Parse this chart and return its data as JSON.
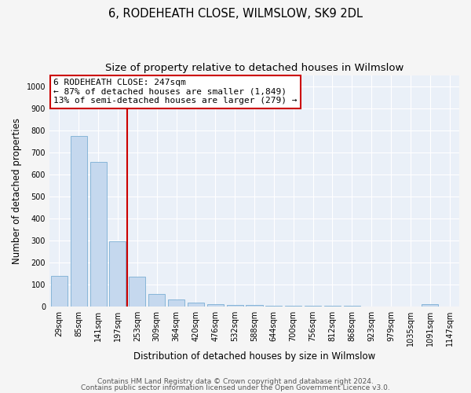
{
  "title": "6, RODEHEATH CLOSE, WILMSLOW, SK9 2DL",
  "subtitle": "Size of property relative to detached houses in Wilmslow",
  "xlabel": "Distribution of detached houses by size in Wilmslow",
  "ylabel": "Number of detached properties",
  "categories": [
    "29sqm",
    "85sqm",
    "141sqm",
    "197sqm",
    "253sqm",
    "309sqm",
    "364sqm",
    "420sqm",
    "476sqm",
    "532sqm",
    "588sqm",
    "644sqm",
    "700sqm",
    "756sqm",
    "812sqm",
    "868sqm",
    "923sqm",
    "979sqm",
    "1035sqm",
    "1091sqm",
    "1147sqm"
  ],
  "values": [
    140,
    775,
    655,
    295,
    135,
    57,
    33,
    18,
    10,
    8,
    5,
    4,
    3,
    3,
    2,
    2,
    0,
    0,
    0,
    10,
    0
  ],
  "bar_color": "#c5d8ee",
  "bar_edge_color": "#7aaed4",
  "vline_x": 4,
  "annotation_text": "6 RODEHEATH CLOSE: 247sqm\n← 87% of detached houses are smaller (1,849)\n13% of semi-detached houses are larger (279) →",
  "annotation_box_color": "#ffffff",
  "annotation_box_edge_color": "#cc0000",
  "vline_color": "#cc0000",
  "ylim": [
    0,
    1050
  ],
  "yticks": [
    0,
    100,
    200,
    300,
    400,
    500,
    600,
    700,
    800,
    900,
    1000
  ],
  "footer_line1": "Contains HM Land Registry data © Crown copyright and database right 2024.",
  "footer_line2": "Contains public sector information licensed under the Open Government Licence v3.0.",
  "bg_color": "#eaf0f8",
  "grid_color": "#ffffff",
  "title_fontsize": 10.5,
  "subtitle_fontsize": 9.5,
  "axis_label_fontsize": 8.5,
  "tick_fontsize": 7,
  "annotation_fontsize": 8,
  "footer_fontsize": 6.5
}
